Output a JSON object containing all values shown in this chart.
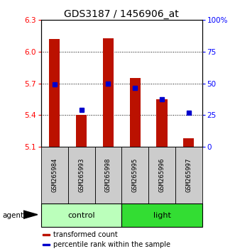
{
  "title": "GDS3187 / 1456906_at",
  "samples": [
    "GSM265984",
    "GSM265993",
    "GSM265998",
    "GSM265995",
    "GSM265996",
    "GSM265997"
  ],
  "groups": [
    {
      "name": "control",
      "indices": [
        0,
        1,
        2
      ]
    },
    {
      "name": "light",
      "indices": [
        3,
        4,
        5
      ]
    }
  ],
  "group_colors": [
    "#BBFFBB",
    "#33DD33"
  ],
  "bar_values": [
    6.12,
    5.4,
    6.13,
    5.75,
    5.55,
    5.18
  ],
  "percentile_values": [
    5.69,
    5.45,
    5.7,
    5.66,
    5.55,
    5.42
  ],
  "y_min": 5.1,
  "y_max": 6.3,
  "y_ticks": [
    5.1,
    5.4,
    5.7,
    6.0,
    6.3
  ],
  "y_right_ticks_pct": [
    0,
    25,
    50,
    75,
    100
  ],
  "y_right_labels": [
    "0",
    "25",
    "50",
    "75",
    "100%"
  ],
  "bar_color": "#BB1100",
  "percentile_color": "#0000CC",
  "bar_width": 0.4,
  "legend_items": [
    {
      "label": "transformed count",
      "color": "#BB1100"
    },
    {
      "label": "percentile rank within the sample",
      "color": "#0000CC"
    }
  ],
  "title_fontsize": 10,
  "tick_fontsize": 7.5,
  "sample_fontsize": 6.5,
  "group_fontsize": 8,
  "legend_fontsize": 7
}
